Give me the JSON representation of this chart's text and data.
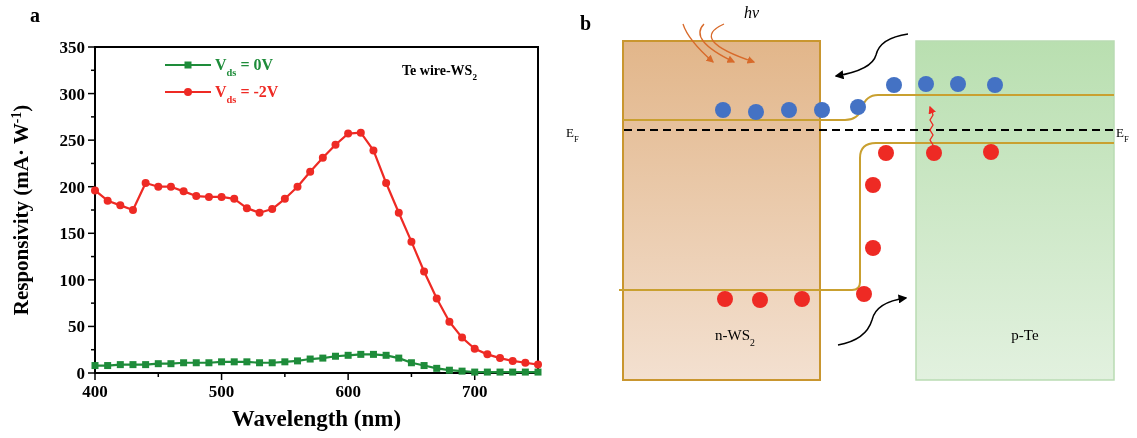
{
  "chart_data": [
    {
      "type": "line",
      "title": "a",
      "xlabel": "Wavelength (nm)",
      "ylabel": "Responsivity (mA· W$^{-1}$)",
      "x": [
        400,
        410,
        420,
        430,
        440,
        450,
        460,
        470,
        480,
        490,
        500,
        510,
        520,
        530,
        540,
        550,
        560,
        570,
        580,
        590,
        600,
        610,
        620,
        630,
        640,
        650,
        660,
        670,
        680,
        690,
        700,
        710,
        720,
        730,
        740,
        750
      ],
      "series": [
        {
          "name": "V$_{ds}$ = 0V",
          "color": "#1e8c3a",
          "marker": "square",
          "values": [
            8,
            8,
            9,
            9,
            9,
            10,
            10,
            11,
            11,
            11,
            12,
            12,
            12,
            11,
            11,
            12,
            13,
            15,
            16,
            18,
            19,
            20,
            20,
            19,
            16,
            11,
            8,
            5,
            3,
            2,
            1,
            1,
            1,
            1,
            1,
            1
          ]
        },
        {
          "name": "V$_{ds}$ = -2V",
          "color": "#ee2a24",
          "marker": "circle",
          "values": [
            196,
            185,
            180,
            175,
            204,
            200,
            200,
            195,
            190,
            189,
            189,
            187,
            177,
            172,
            176,
            187,
            200,
            216,
            231,
            245,
            257,
            258,
            239,
            204,
            172,
            141,
            109,
            80,
            55,
            38,
            26,
            20,
            16,
            13,
            11,
            9
          ]
        }
      ],
      "xlim": [
        400,
        750
      ],
      "ylim": [
        0,
        350
      ],
      "xticks": [
        400,
        {
          "value": 450,
          "label": null
        },
        500,
        {
          "value": 550,
          "label": null
        },
        600,
        {
          "value": 650,
          "label": null
        },
        700
      ],
      "yticks": [
        0,
        {
          "value": 25,
          "label": null
        },
        50,
        {
          "value": 75,
          "label": null
        },
        100,
        {
          "value": 125,
          "label": null
        },
        150,
        {
          "value": 175,
          "label": null
        },
        200,
        {
          "value": 225,
          "label": null
        },
        250,
        {
          "value": 275,
          "label": null
        },
        300,
        {
          "value": 325,
          "label": null
        },
        350
      ],
      "legend": "top left",
      "line_style": "solid",
      "annotations": [
        "Te wire-WS$_{2}$"
      ]
    },
    {
      "type": "other",
      "title": "b",
      "annotations": [
        "hν",
        "E$_{F}$",
        "E$_{F}$",
        "n-WS$_{2}$",
        "p-Te"
      ]
    }
  ]
}
